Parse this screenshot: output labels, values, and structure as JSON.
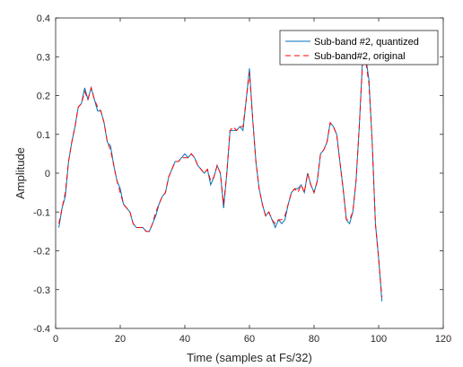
{
  "chart_data": {
    "type": "line",
    "title": "",
    "xlabel": "Time (samples at Fs/32)",
    "ylabel": "Amplitude",
    "xlim": [
      0,
      120
    ],
    "ylim": [
      -0.4,
      0.4
    ],
    "xticks": [
      "0",
      "20",
      "40",
      "60",
      "80",
      "100",
      "120"
    ],
    "yticks": [
      "-0.4",
      "-0.3",
      "-0.2",
      "-0.1",
      "0",
      "0.1",
      "0.2",
      "0.3",
      "0.4"
    ],
    "grid": false,
    "legend_position": "top-right",
    "x": [
      1,
      2,
      3,
      4,
      5,
      6,
      7,
      8,
      9,
      10,
      11,
      12,
      13,
      14,
      15,
      16,
      17,
      18,
      19,
      20,
      21,
      22,
      23,
      24,
      25,
      26,
      27,
      28,
      29,
      30,
      31,
      32,
      33,
      34,
      35,
      36,
      37,
      38,
      39,
      40,
      41,
      42,
      43,
      44,
      45,
      46,
      47,
      48,
      49,
      50,
      51,
      52,
      53,
      54,
      55,
      56,
      57,
      58,
      59,
      60,
      61,
      62,
      63,
      64,
      65,
      66,
      67,
      68,
      69,
      70,
      71,
      72,
      73,
      74,
      75,
      76,
      77,
      78,
      79,
      80,
      81,
      82,
      83,
      84,
      85,
      86,
      87,
      88,
      89,
      90,
      91,
      92,
      93,
      94,
      95,
      96,
      97,
      98,
      99,
      100,
      101
    ],
    "series": [
      {
        "name": "Sub-band #2, quantized",
        "color": "#0072bd",
        "dash": "solid",
        "values": [
          -0.14,
          -0.09,
          -0.06,
          0.03,
          0.08,
          0.12,
          0.17,
          0.18,
          0.22,
          0.19,
          0.22,
          0.19,
          0.16,
          0.16,
          0.13,
          0.08,
          0.07,
          0.02,
          -0.02,
          -0.04,
          -0.08,
          -0.09,
          -0.1,
          -0.13,
          -0.14,
          -0.14,
          -0.14,
          -0.15,
          -0.15,
          -0.13,
          -0.11,
          -0.08,
          -0.06,
          -0.05,
          -0.01,
          0.01,
          0.03,
          0.03,
          0.04,
          0.05,
          0.04,
          0.05,
          0.04,
          0.02,
          0.01,
          0.0,
          0.01,
          -0.03,
          -0.01,
          0.02,
          0.0,
          -0.09,
          0.0,
          0.11,
          0.11,
          0.11,
          0.12,
          0.11,
          0.19,
          0.27,
          0.14,
          0.03,
          -0.04,
          -0.08,
          -0.11,
          -0.1,
          -0.12,
          -0.14,
          -0.12,
          -0.13,
          -0.12,
          -0.08,
          -0.05,
          -0.04,
          -0.04,
          -0.03,
          -0.05,
          0.0,
          -0.03,
          -0.05,
          -0.02,
          0.05,
          0.06,
          0.08,
          0.13,
          0.12,
          0.1,
          0.03,
          -0.04,
          -0.12,
          -0.13,
          -0.1,
          -0.02,
          0.12,
          0.29,
          0.3,
          0.24,
          0.08,
          -0.13,
          -0.22,
          -0.33
        ]
      },
      {
        "name": "Sub-band#2, original",
        "color": "#ff0000",
        "dash": "dashed",
        "values": [
          -0.13,
          -0.09,
          -0.05,
          0.03,
          0.08,
          0.12,
          0.17,
          0.18,
          0.21,
          0.19,
          0.22,
          0.19,
          0.17,
          0.16,
          0.13,
          0.08,
          0.06,
          0.02,
          -0.02,
          -0.05,
          -0.08,
          -0.09,
          -0.1,
          -0.13,
          -0.14,
          -0.14,
          -0.14,
          -0.15,
          -0.15,
          -0.13,
          -0.1,
          -0.08,
          -0.06,
          -0.05,
          -0.01,
          0.01,
          0.03,
          0.03,
          0.04,
          0.04,
          0.04,
          0.05,
          0.04,
          0.02,
          0.01,
          0.0,
          0.01,
          -0.02,
          -0.01,
          0.02,
          0.0,
          -0.08,
          0.0,
          0.11,
          0.12,
          0.11,
          0.12,
          0.12,
          0.19,
          0.26,
          0.14,
          0.03,
          -0.04,
          -0.08,
          -0.11,
          -0.1,
          -0.12,
          -0.13,
          -0.12,
          -0.12,
          -0.11,
          -0.08,
          -0.05,
          -0.04,
          -0.05,
          -0.03,
          -0.05,
          0.0,
          -0.03,
          -0.05,
          -0.02,
          0.05,
          0.06,
          0.08,
          0.13,
          0.12,
          0.1,
          0.03,
          -0.04,
          -0.12,
          -0.12,
          -0.1,
          -0.02,
          0.12,
          0.28,
          0.29,
          0.23,
          0.08,
          -0.13,
          -0.22,
          -0.32
        ]
      }
    ]
  }
}
